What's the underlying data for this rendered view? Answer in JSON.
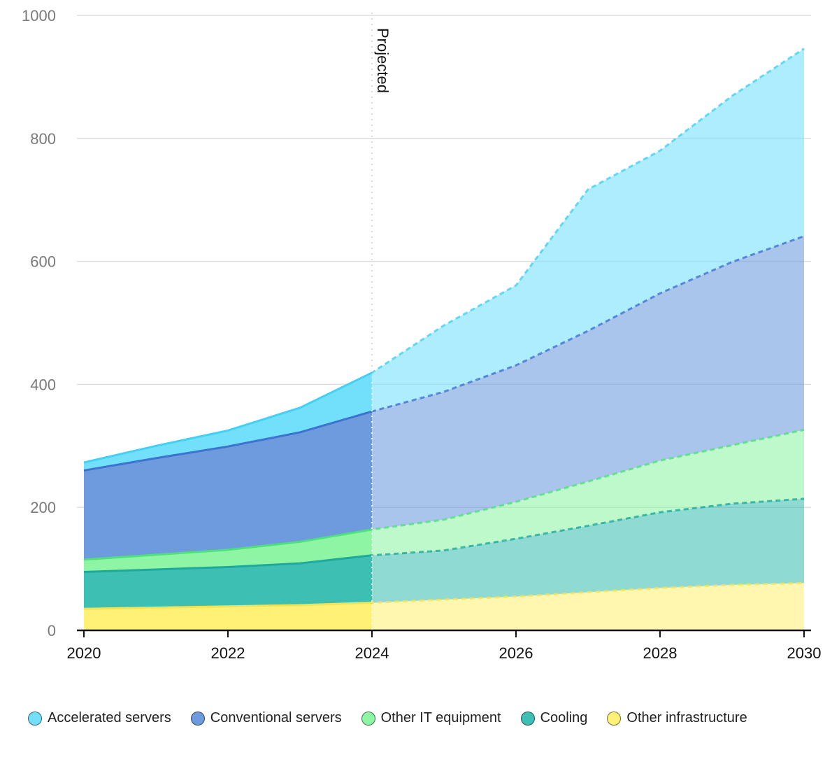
{
  "chart_data": {
    "type": "area",
    "stacked": true,
    "x": [
      2020,
      2021,
      2022,
      2023,
      2024,
      2025,
      2026,
      2027,
      2028,
      2029,
      2030
    ],
    "projection_start": 2024,
    "projection_label": "Projected",
    "xticks": [
      "2020",
      "2022",
      "2024",
      "2026",
      "2028",
      "2030"
    ],
    "xtick_values": [
      2020,
      2022,
      2024,
      2026,
      2028,
      2030
    ],
    "yticks": [
      "0",
      "200",
      "400",
      "600",
      "800",
      "1000"
    ],
    "ytick_values": [
      0,
      200,
      400,
      600,
      800,
      1000
    ],
    "ylim": [
      0,
      1000
    ],
    "xlim": [
      2020,
      2030
    ],
    "grid": true,
    "legend_position": "bottom",
    "series": [
      {
        "name": "Other infrastructure",
        "color": "#fff176",
        "line": "#f2e45a",
        "values": [
          35,
          37,
          39,
          41,
          45,
          50,
          55,
          62,
          69,
          74,
          77
        ]
      },
      {
        "name": "Cooling",
        "color": "#3ebfb4",
        "line": "#1fa99c",
        "values": [
          60,
          62,
          64,
          68,
          77,
          80,
          94,
          108,
          123,
          132,
          137
        ]
      },
      {
        "name": "Other IT equipment",
        "color": "#8ef5a4",
        "line": "#4fe07c",
        "values": [
          20,
          24,
          28,
          35,
          42,
          50,
          60,
          72,
          84,
          95,
          112
        ]
      },
      {
        "name": "Conventional servers",
        "color": "#6d9bdd",
        "line": "#3e72cf",
        "values": [
          145,
          157,
          168,
          178,
          192,
          208,
          222,
          245,
          272,
          298,
          315
        ]
      },
      {
        "name": "Accelerated servers",
        "color": "#73e0fb",
        "line": "#43d0f5",
        "values": [
          13,
          20,
          26,
          40,
          63,
          108,
          130,
          230,
          232,
          270,
          305
        ]
      }
    ]
  }
}
